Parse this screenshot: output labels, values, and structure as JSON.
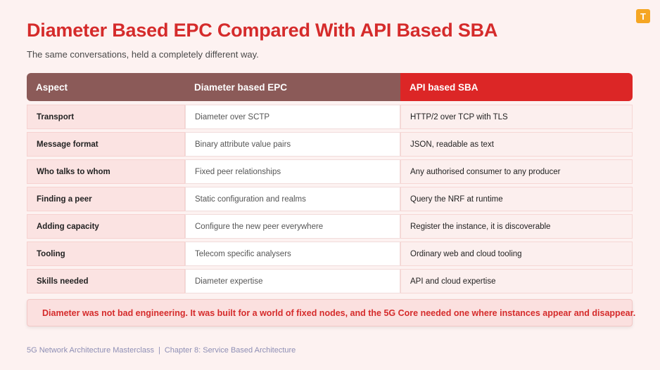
{
  "brand": {
    "logo_letter": "T",
    "accent": "#f5a623"
  },
  "title": "Diameter Based EPC Compared With API Based SBA",
  "subtitle": "The same conversations, held a completely different way.",
  "table": {
    "headers": [
      "Aspect",
      "Diameter based EPC",
      "API based SBA"
    ],
    "rows": [
      [
        "Transport",
        "Diameter over SCTP",
        "HTTP/2 over TCP with TLS"
      ],
      [
        "Message format",
        "Binary attribute value pairs",
        "JSON, readable as text"
      ],
      [
        "Who talks to whom",
        "Fixed peer relationships",
        "Any authorised consumer to any producer"
      ],
      [
        "Finding a peer",
        "Static configuration and realms",
        "Query the NRF at runtime"
      ],
      [
        "Adding capacity",
        "Configure the new peer everywhere",
        "Register the instance, it is discoverable"
      ],
      [
        "Tooling",
        "Telecom specific analysers",
        "Ordinary web and cloud tooling"
      ],
      [
        "Skills needed",
        "Diameter expertise",
        "API and cloud expertise"
      ]
    ]
  },
  "note": "Diameter was not bad engineering. It was built for a world of fixed nodes, and the 5G Core needed one where instances appear and disappear.",
  "footer": {
    "course": "5G Network Architecture Masterclass",
    "separator": "|",
    "chapter": "Chapter 8: Service Based Architecture"
  },
  "colors": {
    "title": "#d52b2b",
    "header_muted": "#8b5a58",
    "header_highlight": "#dc2626",
    "background": "#fdf2f1"
  }
}
